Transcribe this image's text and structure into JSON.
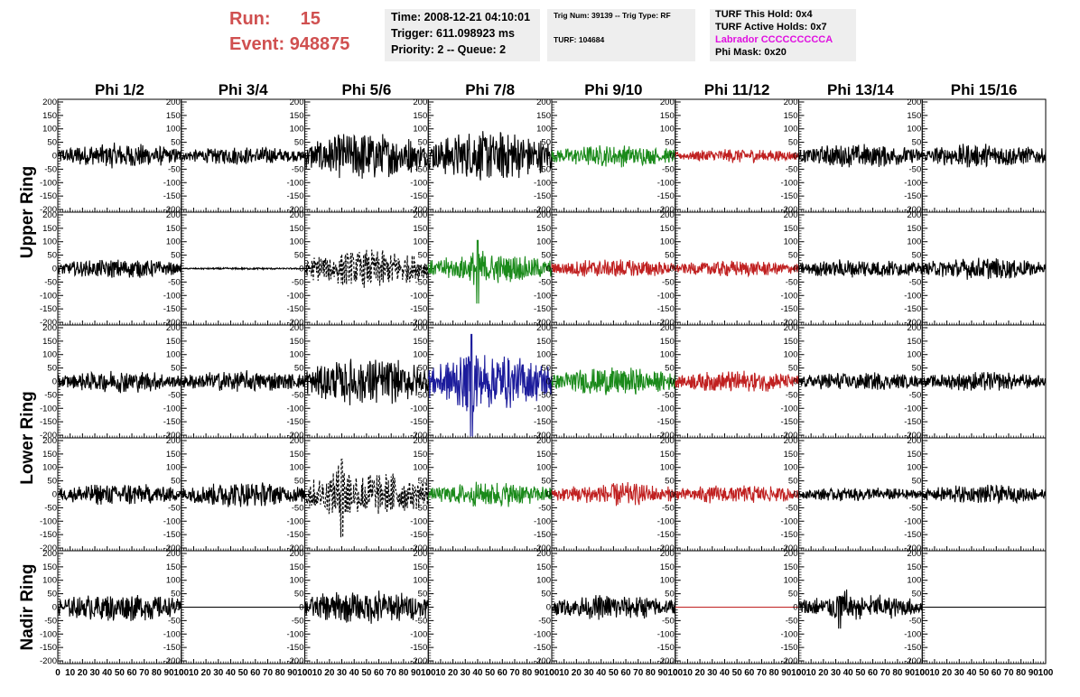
{
  "header": {
    "run_label": "Run:",
    "run_value": "15",
    "event_label": "Event:",
    "event_value": "948875",
    "time": "Time: 2008-12-21 04:10:01",
    "trigger": "Trigger: 611.098923 ms",
    "priority_queue": "Priority: 2 -- Queue: 2",
    "trig_num_type": "Trig Num: 39139 -- Trig Type: RF",
    "turf": "TURF: 104684",
    "turf_this_hold": "TURF This Hold: 0x4",
    "turf_active_holds": "TURF Active Holds: 0x7",
    "labrador": "Labrador CCCCCCCCCA",
    "phi_mask": "Phi Mask: 0x20"
  },
  "colors": {
    "run_event": "#d05050",
    "labrador": "#e010e0",
    "trace_default": "#000000",
    "trace_green": "#1a8a1a",
    "trace_red": "#c02020",
    "trace_blue": "#1c1c9c"
  },
  "chart_data": {
    "type": "line",
    "title": "",
    "column_labels": [
      "Phi 1/2",
      "Phi 3/4",
      "Phi 5/6",
      "Phi 7/8",
      "Phi 9/10",
      "Phi 11/12",
      "Phi 13/14",
      "Phi 15/16"
    ],
    "ring_labels": [
      {
        "label": "Upper Ring",
        "rows": [
          0,
          1
        ]
      },
      {
        "label": "Lower Ring",
        "rows": [
          2,
          3
        ]
      },
      {
        "label": "Nadir Ring",
        "rows": [
          4
        ]
      }
    ],
    "xlim": [
      0,
      100
    ],
    "ylim": [
      -210,
      210
    ],
    "x_ticks": [
      0,
      10,
      20,
      30,
      40,
      50,
      60,
      70,
      80,
      90,
      100
    ],
    "x_tick_labels": [
      "0",
      "10",
      "20",
      "30",
      "40",
      "50",
      "60",
      "70",
      "80",
      "90",
      "100"
    ],
    "y_ticks": [
      -200,
      -150,
      -100,
      -50,
      0,
      50,
      100,
      150,
      200
    ],
    "y_tick_labels": [
      "-200",
      "-150",
      "-100",
      "-50",
      "0",
      "50",
      "100",
      "150",
      "200"
    ],
    "grid": false,
    "rows": [
      [
        {
          "color": "black",
          "amp": 40
        },
        {
          "color": "black",
          "amp": 28
        },
        {
          "color": "black",
          "amp": 75
        },
        {
          "color": "black",
          "amp": 80
        },
        {
          "color": "green",
          "amp": 35
        },
        {
          "color": "red",
          "amp": 22
        },
        {
          "color": "black",
          "amp": 38
        },
        {
          "color": "black",
          "amp": 38
        }
      ],
      [
        {
          "color": "black",
          "amp": 30
        },
        {
          "color": "black",
          "amp": 3
        },
        {
          "color": "black",
          "amp": 60,
          "style": "dashed"
        },
        {
          "color": "green",
          "amp": 45,
          "peak": 105,
          "peak_min": -130,
          "peak_at": 40
        },
        {
          "color": "red",
          "amp": 30
        },
        {
          "color": "red",
          "amp": 25
        },
        {
          "color": "black",
          "amp": 30
        },
        {
          "color": "black",
          "amp": 35
        }
      ],
      [
        {
          "color": "black",
          "amp": 35
        },
        {
          "color": "black",
          "amp": 35
        },
        {
          "color": "black",
          "amp": 75
        },
        {
          "color": "blue",
          "amp": 90,
          "peak": 175,
          "peak_min": -205,
          "peak_at": 35
        },
        {
          "color": "green",
          "amp": 45
        },
        {
          "color": "red",
          "amp": 35
        },
        {
          "color": "black",
          "amp": 30
        },
        {
          "color": "black",
          "amp": 30
        }
      ],
      [
        {
          "color": "black",
          "amp": 35
        },
        {
          "color": "black",
          "amp": 40
        },
        {
          "color": "black",
          "amp": 75,
          "style": "dashed",
          "peak": 130,
          "peak_min": -160,
          "peak_at": 30
        },
        {
          "color": "green",
          "amp": 40
        },
        {
          "color": "red",
          "amp": 38
        },
        {
          "color": "red",
          "amp": 30
        },
        {
          "color": "black",
          "amp": 22
        },
        {
          "color": "black",
          "amp": 30
        }
      ],
      [
        {
          "color": "black",
          "amp": 45
        },
        {
          "color": "black",
          "amp": 0
        },
        {
          "color": "black",
          "amp": 55
        },
        {
          "color": "none",
          "amp": 0
        },
        {
          "color": "black",
          "amp": 40
        },
        {
          "color": "red",
          "amp": 0
        },
        {
          "color": "black",
          "amp": 40,
          "peak": 40,
          "peak_min": -80,
          "peak_at": 33
        },
        {
          "color": "black",
          "amp": 0
        }
      ]
    ]
  }
}
